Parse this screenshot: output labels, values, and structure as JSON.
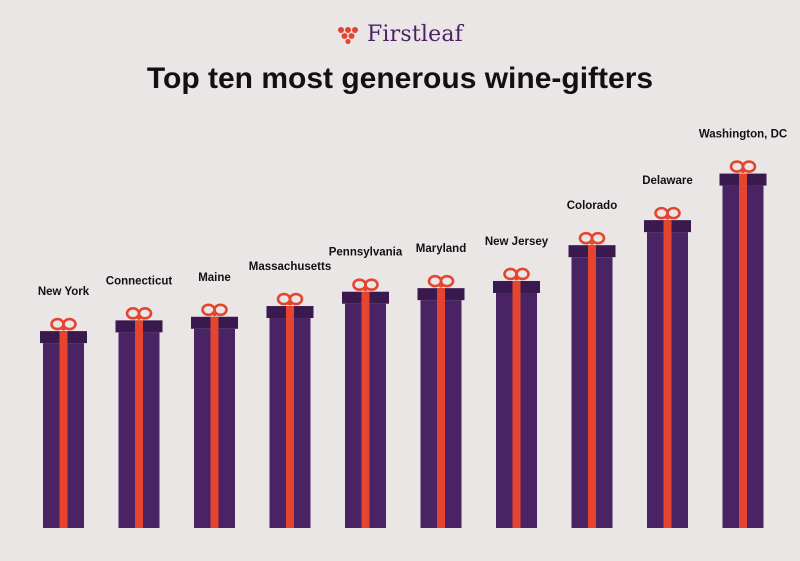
{
  "brand": {
    "name": "Firstleaf",
    "logo_icon": "grape-cluster-icon"
  },
  "colors": {
    "background": "#ebe6e6",
    "box": "#4a2364",
    "lid": "#3a1a4e",
    "ribbon": "#e5452f",
    "brand": "#4a2364"
  },
  "chart_data": {
    "type": "bar",
    "title": "Top ten most generous wine-gifters",
    "xlabel": "",
    "ylabel": "",
    "ylim": [
      0,
      100
    ],
    "categories": [
      "New York",
      "Connecticut",
      "Maine",
      "Massachusetts",
      "Pennsylvania",
      "Maryland",
      "New Jersey",
      "Colorado",
      "Delaware",
      "Washington, DC"
    ],
    "values": [
      55,
      58,
      59,
      62,
      66,
      67,
      69,
      79,
      86,
      99
    ],
    "grid": false,
    "legend": "none"
  }
}
